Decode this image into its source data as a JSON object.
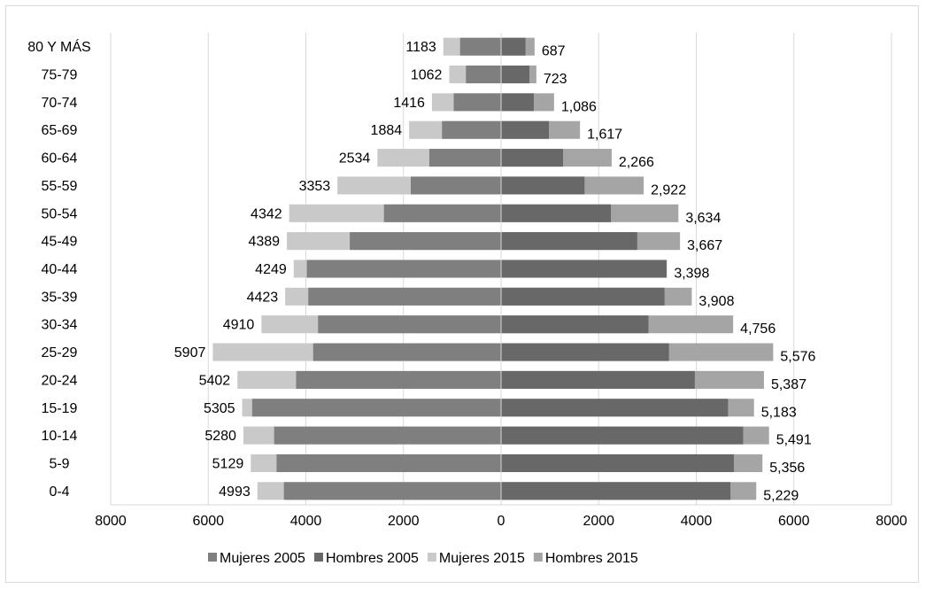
{
  "chart_data": {
    "type": "bar",
    "orientation": "horizontal",
    "layout": "population-pyramid",
    "categories": [
      "0-4",
      "5-9",
      "10-14",
      "15-19",
      "20-24",
      "25-29",
      "30-34",
      "35-39",
      "40-44",
      "45-49",
      "50-54",
      "55-59",
      "60-64",
      "65-69",
      "70-74",
      "75-79",
      "80 Y MÁS"
    ],
    "series": [
      {
        "name": "Mujeres 2005",
        "side": "left",
        "color": "#7f7f7f",
        "values": [
          4450,
          4600,
          4650,
          5100,
          4200,
          3850,
          3750,
          3950,
          3980,
          3100,
          2400,
          1850,
          1470,
          1210,
          970,
          720,
          840
        ]
      },
      {
        "name": "Hombres 2005",
        "side": "right",
        "color": "#686868",
        "values": [
          4700,
          4770,
          4960,
          4650,
          3970,
          3440,
          3020,
          3350,
          3390,
          2790,
          2250,
          1710,
          1270,
          980,
          670,
          580,
          500
        ]
      },
      {
        "name": "Mujeres 2015",
        "side": "left",
        "color": "#c9c9c9",
        "values": [
          4993,
          5129,
          5280,
          5305,
          5402,
          5907,
          4910,
          4423,
          4249,
          4389,
          4342,
          3353,
          2534,
          1884,
          1416,
          1062,
          1183
        ]
      },
      {
        "name": "Hombres 2015",
        "side": "right",
        "color": "#a5a5a5",
        "values": [
          5229,
          5356,
          5491,
          5183,
          5387,
          5576,
          4756,
          3908,
          3398,
          3667,
          3634,
          2922,
          2266,
          1617,
          1086,
          723,
          687
        ]
      }
    ],
    "data_labels": {
      "left": [
        "4993",
        "5129",
        "5280",
        "5305",
        "5402",
        "5907",
        "4910",
        "4423",
        "4249",
        "4389",
        "4342",
        "3353",
        "2534",
        "1884",
        "1416",
        "1062",
        "1183"
      ],
      "right": [
        "5,229",
        "5,356",
        "5,491",
        "5,183",
        "5,387",
        "5,576",
        "4,756",
        "3,908",
        "3,398",
        "3,667",
        "3,634",
        "2,922",
        "2,266",
        "1,617",
        "1,086",
        "723",
        "687"
      ]
    },
    "x_ticks": [
      "8000",
      "6000",
      "4000",
      "2000",
      "0",
      "2000",
      "4000",
      "6000",
      "8000"
    ],
    "xlim": [
      -8000,
      8000
    ],
    "grid": true,
    "legend_position": "bottom",
    "title": "",
    "xlabel": "",
    "ylabel": ""
  }
}
